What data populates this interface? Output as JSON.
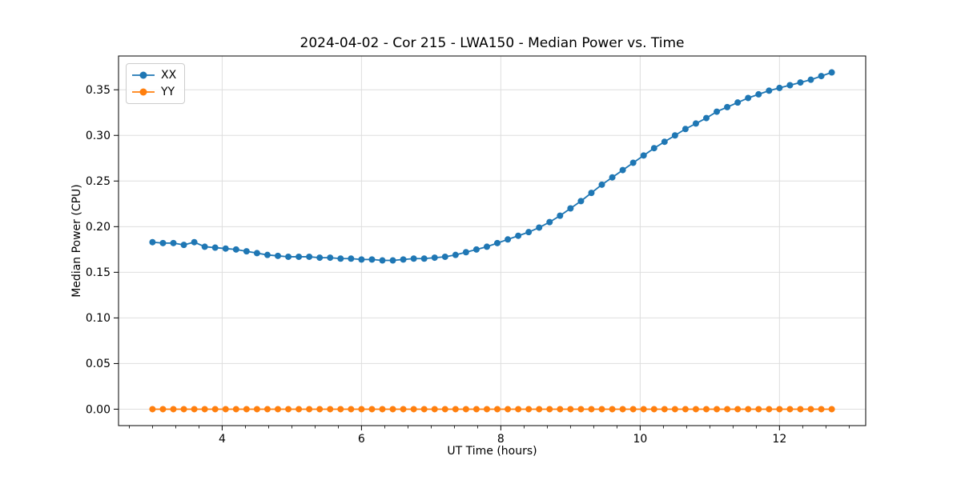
{
  "figure": {
    "background": "#ffffff",
    "plot_border_color": "#000000",
    "grid_color": "#dedede"
  },
  "chart_data": {
    "type": "line",
    "title": "2024-04-02 - Cor 215 - LWA150 - Median Power vs. Time",
    "xlabel": "UT Time (hours)",
    "ylabel": "Median Power (CPU)",
    "xlim": [
      2.5125,
      13.2375
    ],
    "ylim": [
      -0.018,
      0.387
    ],
    "grid": true,
    "x_major_ticks": [
      4,
      6,
      8,
      10,
      12
    ],
    "x_major_tick_labels": [
      "4",
      "6",
      "8",
      "10",
      "12"
    ],
    "x_minor_tick_step": 0.3333333,
    "y_ticks": [
      0.0,
      0.05,
      0.1,
      0.15,
      0.2,
      0.25,
      0.3,
      0.35
    ],
    "y_tick_labels": [
      "0.00",
      "0.05",
      "0.10",
      "0.15",
      "0.20",
      "0.25",
      "0.30",
      "0.35"
    ],
    "legend": {
      "position": "top-left",
      "entries": [
        {
          "label": "XX",
          "color": "#1f77b4"
        },
        {
          "label": "YY",
          "color": "#ff7f0e"
        }
      ]
    },
    "x": [
      3.0,
      3.15,
      3.3,
      3.45,
      3.6,
      3.75,
      3.9,
      4.05,
      4.2,
      4.35,
      4.5,
      4.65,
      4.8,
      4.95,
      5.1,
      5.25,
      5.4,
      5.55,
      5.7,
      5.85,
      6.0,
      6.15,
      6.3,
      6.45,
      6.6,
      6.75,
      6.9,
      7.05,
      7.2,
      7.35,
      7.5,
      7.65,
      7.8,
      7.95,
      8.1,
      8.25,
      8.4,
      8.55,
      8.7,
      8.85,
      9.0,
      9.15,
      9.3,
      9.45,
      9.6,
      9.75,
      9.9,
      10.05,
      10.2,
      10.35,
      10.5,
      10.65,
      10.8,
      10.95,
      11.1,
      11.25,
      11.4,
      11.55,
      11.7,
      11.85,
      12.0,
      12.15,
      12.3,
      12.45,
      12.6,
      12.75
    ],
    "series": [
      {
        "name": "XX",
        "color": "#1f77b4",
        "marker": "circle",
        "values": [
          0.183,
          0.182,
          0.182,
          0.18,
          0.183,
          0.178,
          0.177,
          0.176,
          0.175,
          0.173,
          0.171,
          0.169,
          0.168,
          0.167,
          0.167,
          0.167,
          0.166,
          0.166,
          0.165,
          0.165,
          0.164,
          0.164,
          0.163,
          0.163,
          0.164,
          0.165,
          0.165,
          0.166,
          0.167,
          0.169,
          0.172,
          0.175,
          0.178,
          0.182,
          0.186,
          0.19,
          0.194,
          0.199,
          0.205,
          0.212,
          0.22,
          0.228,
          0.237,
          0.246,
          0.254,
          0.262,
          0.27,
          0.278,
          0.286,
          0.293,
          0.3,
          0.307,
          0.313,
          0.319,
          0.326,
          0.331,
          0.336,
          0.341,
          0.345,
          0.349,
          0.352,
          0.355,
          0.358,
          0.361,
          0.365,
          0.369
        ]
      },
      {
        "name": "YY",
        "color": "#ff7f0e",
        "marker": "circle",
        "values": [
          0.0,
          0.0,
          0.0,
          0.0,
          0.0,
          0.0,
          0.0,
          0.0,
          0.0,
          0.0,
          0.0,
          0.0,
          0.0,
          0.0,
          0.0,
          0.0,
          0.0,
          0.0,
          0.0,
          0.0,
          0.0,
          0.0,
          0.0,
          0.0,
          0.0,
          0.0,
          0.0,
          0.0,
          0.0,
          0.0,
          0.0,
          0.0,
          0.0,
          0.0,
          0.0,
          0.0,
          0.0,
          0.0,
          0.0,
          0.0,
          0.0,
          0.0,
          0.0,
          0.0,
          0.0,
          0.0,
          0.0,
          0.0,
          0.0,
          0.0,
          0.0,
          0.0,
          0.0,
          0.0,
          0.0,
          0.0,
          0.0,
          0.0,
          0.0,
          0.0,
          0.0,
          0.0,
          0.0,
          0.0,
          0.0,
          0.0
        ]
      }
    ]
  }
}
